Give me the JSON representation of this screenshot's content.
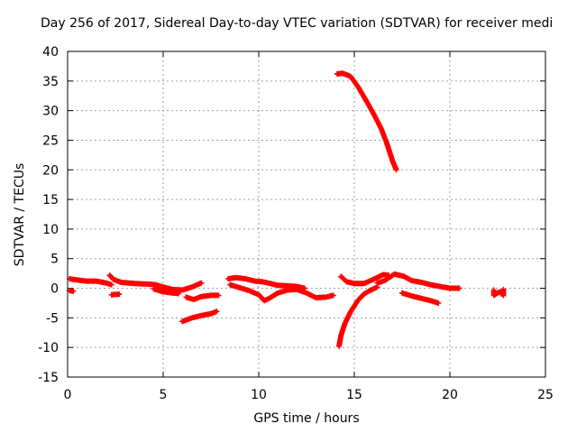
{
  "chart_data": {
    "type": "scatter",
    "title": "Day 256 of 2017, Sidereal Day-to-day VTEC variation (SDTVAR) for receiver medi",
    "xlabel": "GPS time / hours",
    "ylabel": "SDTVAR / TECUs",
    "xlim": [
      0,
      25
    ],
    "ylim": [
      -15,
      40
    ],
    "xticks": [
      "0",
      "5",
      "10",
      "15",
      "20",
      "25"
    ],
    "yticks": [
      "-15",
      "-10",
      "-5",
      "0",
      "5",
      "10",
      "15",
      "20",
      "25",
      "30",
      "35",
      "40"
    ],
    "grid": true,
    "marker": "plus",
    "color": "#ff0000",
    "series": [
      {
        "points": [
          [
            0.1,
            -0.4
          ],
          [
            0.3,
            -0.5
          ]
        ]
      },
      {
        "points": [
          [
            0.1,
            1.6
          ],
          [
            0.5,
            1.4
          ],
          [
            1.0,
            1.2
          ],
          [
            1.5,
            1.2
          ],
          [
            2.0,
            0.9
          ],
          [
            2.3,
            0.6
          ]
        ]
      },
      {
        "points": [
          [
            2.2,
            2.2
          ],
          [
            2.4,
            1.5
          ],
          [
            2.8,
            1.0
          ],
          [
            3.5,
            0.8
          ],
          [
            4.2,
            0.7
          ],
          [
            4.6,
            0.6
          ],
          [
            5.0,
            0.2
          ],
          [
            5.5,
            -0.2
          ],
          [
            6.0,
            -0.3
          ],
          [
            6.5,
            0.2
          ],
          [
            7.0,
            0.9
          ]
        ]
      },
      {
        "points": [
          [
            4.5,
            -0.1
          ],
          [
            5.0,
            -0.6
          ],
          [
            5.5,
            -0.8
          ],
          [
            5.8,
            -0.9
          ]
        ]
      },
      {
        "points": [
          [
            2.3,
            -1.1
          ],
          [
            2.7,
            -1.0
          ]
        ]
      },
      {
        "points": [
          [
            6.2,
            -1.5
          ],
          [
            6.6,
            -1.9
          ],
          [
            7.0,
            -1.4
          ],
          [
            7.5,
            -1.2
          ],
          [
            7.9,
            -1.2
          ]
        ]
      },
      {
        "points": [
          [
            6.0,
            -5.6
          ],
          [
            6.5,
            -5.0
          ],
          [
            7.0,
            -4.6
          ],
          [
            7.5,
            -4.3
          ],
          [
            7.8,
            -3.9
          ]
        ]
      },
      {
        "points": [
          [
            8.4,
            1.6
          ],
          [
            8.8,
            1.8
          ],
          [
            9.3,
            1.6
          ],
          [
            9.8,
            1.2
          ],
          [
            10.2,
            1.1
          ],
          [
            10.6,
            0.8
          ],
          [
            11.0,
            0.5
          ],
          [
            11.5,
            0.4
          ],
          [
            12.0,
            0.3
          ],
          [
            12.4,
            0.0
          ]
        ]
      },
      {
        "points": [
          [
            8.5,
            0.6
          ],
          [
            9.0,
            0.1
          ],
          [
            9.5,
            -0.4
          ],
          [
            10.0,
            -1.1
          ],
          [
            10.3,
            -2.1
          ],
          [
            10.6,
            -1.6
          ],
          [
            11.0,
            -0.8
          ],
          [
            11.5,
            -0.3
          ],
          [
            12.0,
            -0.2
          ],
          [
            12.5,
            -0.8
          ],
          [
            13.0,
            -1.6
          ],
          [
            13.5,
            -1.5
          ],
          [
            13.9,
            -1.2
          ]
        ]
      },
      {
        "points": [
          [
            14.2,
            -9.8
          ],
          [
            14.3,
            -8.0
          ],
          [
            14.5,
            -6.0
          ],
          [
            14.8,
            -4.0
          ],
          [
            15.2,
            -2.0
          ],
          [
            15.5,
            -1.0
          ],
          [
            15.8,
            -0.4
          ],
          [
            16.2,
            0.2
          ]
        ]
      },
      {
        "points": [
          [
            14.3,
            2.0
          ],
          [
            14.6,
            1.1
          ],
          [
            15.0,
            0.8
          ],
          [
            15.5,
            0.8
          ],
          [
            16.0,
            1.5
          ],
          [
            16.5,
            2.3
          ],
          [
            16.8,
            2.2
          ]
        ]
      },
      {
        "points": [
          [
            16.2,
            0.9
          ],
          [
            16.6,
            1.3
          ],
          [
            17.1,
            2.4
          ],
          [
            17.6,
            2.0
          ],
          [
            18.0,
            1.3
          ],
          [
            18.5,
            1.0
          ],
          [
            19.0,
            0.6
          ],
          [
            19.5,
            0.3
          ],
          [
            20.0,
            0.0
          ],
          [
            20.5,
            0.0
          ]
        ]
      },
      {
        "points": [
          [
            17.5,
            -0.8
          ],
          [
            18.0,
            -1.3
          ],
          [
            18.5,
            -1.7
          ],
          [
            19.0,
            -2.1
          ],
          [
            19.4,
            -2.5
          ]
        ]
      },
      {
        "points": [
          [
            22.3,
            -0.3
          ],
          [
            22.3,
            -1.2
          ],
          [
            22.6,
            -0.6
          ],
          [
            22.8,
            -1.2
          ],
          [
            22.8,
            -0.2
          ]
        ]
      },
      {
        "points": [
          [
            14.1,
            36.2
          ],
          [
            14.4,
            36.3
          ],
          [
            14.8,
            35.8
          ],
          [
            15.2,
            34.0
          ],
          [
            15.6,
            31.8
          ],
          [
            16.0,
            29.5
          ],
          [
            16.4,
            27.0
          ],
          [
            16.7,
            24.5
          ],
          [
            17.0,
            21.5
          ],
          [
            17.2,
            20.0
          ]
        ]
      }
    ]
  }
}
